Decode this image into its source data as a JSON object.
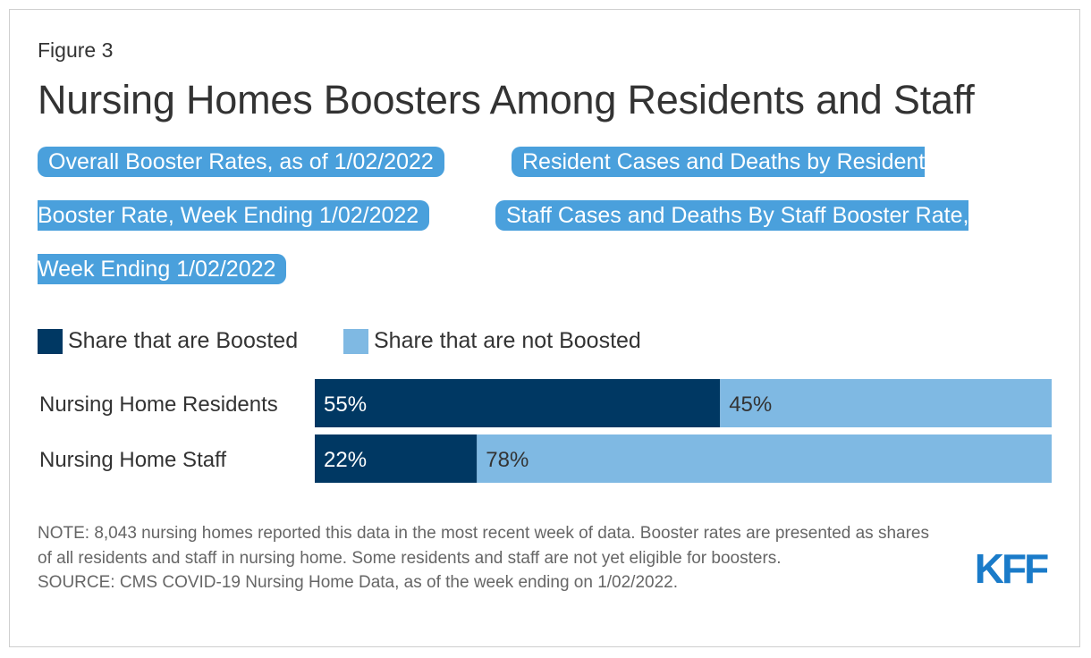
{
  "figure_label": "Figure 3",
  "title": "Nursing Homes Boosters Among Residents and Staff",
  "tabs": [
    {
      "line1": "Overall Booster Rates, as of 1/02/2022"
    },
    {
      "line1": "Resident Cases and Deaths by Resident",
      "line2": "Booster Rate, Week Ending 1/02/2022"
    },
    {
      "line1": "Staff Cases and Deaths By Staff Booster Rate,",
      "line2": "Week Ending 1/02/2022"
    }
  ],
  "colors": {
    "tab_bg": "#4aa0dc",
    "boosted": "#003863",
    "not_boosted": "#7fb9e3",
    "logo": "#1a7bc9"
  },
  "chart_data": {
    "type": "bar",
    "orientation": "horizontal",
    "stacked": true,
    "categories": [
      "Nursing Home Residents",
      "Nursing Home Staff"
    ],
    "series": [
      {
        "name": "Share that are Boosted",
        "values": [
          55,
          22
        ],
        "labels": [
          "55%",
          "22%"
        ],
        "color": "#003863"
      },
      {
        "name": "Share that are not Boosted",
        "values": [
          45,
          78
        ],
        "labels": [
          "45%",
          "78%"
        ],
        "color": "#7fb9e3"
      }
    ],
    "xlim": [
      0,
      100
    ],
    "legend": "top-left"
  },
  "notes": {
    "note": "NOTE: 8,043 nursing homes reported this data in the most recent week of data. Booster rates are presented as shares of all residents and staff in nursing home. Some residents and staff are not yet eligible for boosters.",
    "source": "SOURCE: CMS COVID-19 Nursing Home Data, as of the week ending on 1/02/2022."
  },
  "logo_text": "KFF"
}
